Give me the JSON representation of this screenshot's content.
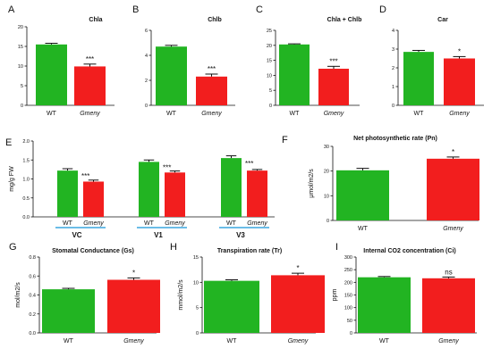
{
  "chart_data": [
    {
      "panel": "A",
      "type": "bar",
      "title": "Chla",
      "ylabel": "",
      "categories": [
        "WT",
        "Gmeny"
      ],
      "values": [
        15.5,
        9.9
      ],
      "errors": [
        0.3,
        0.6
      ],
      "significance": "***",
      "ylim": [
        0,
        20
      ],
      "yticks": [
        0,
        5,
        10,
        15,
        20
      ]
    },
    {
      "panel": "B",
      "type": "bar",
      "title": "Chlb",
      "ylabel": "",
      "categories": [
        "WT",
        "Gmeny"
      ],
      "values": [
        4.7,
        2.3
      ],
      "errors": [
        0.1,
        0.2
      ],
      "significance": "***",
      "ylim": [
        0,
        6
      ],
      "yticks": [
        0,
        2,
        4,
        6
      ]
    },
    {
      "panel": "C",
      "type": "bar",
      "title": "Chla + Chlb",
      "ylabel": "",
      "categories": [
        "WT",
        "Gmeny"
      ],
      "values": [
        20.3,
        12.2
      ],
      "errors": [
        0.2,
        0.8
      ],
      "significance": "***",
      "ylim": [
        0,
        25
      ],
      "yticks": [
        0,
        5,
        10,
        15,
        20,
        25
      ]
    },
    {
      "panel": "D",
      "type": "bar",
      "title": "Car",
      "ylabel": "",
      "categories": [
        "WT",
        "Gmeny"
      ],
      "values": [
        2.85,
        2.5
      ],
      "errors": [
        0.08,
        0.1
      ],
      "significance": "*",
      "ylim": [
        0,
        4
      ],
      "yticks": [
        0,
        1,
        2,
        3,
        4
      ]
    },
    {
      "panel": "E",
      "type": "bar",
      "title": "",
      "ylabel": "mg/g FW",
      "categories": [
        "WT",
        "Gmeny",
        "WT",
        "Gmeny",
        "WT",
        "Gmeny"
      ],
      "groups": [
        "VC",
        "V1",
        "V3"
      ],
      "values": [
        1.22,
        0.93,
        1.45,
        1.17,
        1.55,
        1.22
      ],
      "errors": [
        0.05,
        0.04,
        0.05,
        0.04,
        0.06,
        0.03
      ],
      "significance": [
        "***",
        "***",
        "***"
      ],
      "ylim": [
        0,
        2.0
      ],
      "yticks": [
        0.0,
        0.5,
        1.0,
        1.5,
        2.0
      ],
      "ytick_labels": [
        "0.0",
        "0.5",
        "1.0",
        "1.5",
        "2.0"
      ]
    },
    {
      "panel": "F",
      "type": "bar",
      "title": "Net photosynthetic rate (Pn)",
      "ylabel": "μmol/m2/s",
      "categories": [
        "WT",
        "Gmeny"
      ],
      "values": [
        20.3,
        25.0
      ],
      "errors": [
        0.8,
        0.7
      ],
      "significance": "*",
      "ylim": [
        0,
        30
      ],
      "yticks": [
        0,
        10,
        20,
        30
      ]
    },
    {
      "panel": "G",
      "type": "bar",
      "title": "Stomatal Conductance (Gs)",
      "ylabel": "mol/m2/s",
      "categories": [
        "WT",
        "Gmeny"
      ],
      "values": [
        0.46,
        0.56
      ],
      "errors": [
        0.01,
        0.02
      ],
      "significance": "*",
      "ylim": [
        0,
        0.8
      ],
      "yticks": [
        0.0,
        0.2,
        0.4,
        0.6,
        0.8
      ],
      "ytick_labels": [
        "0.0",
        "0.2",
        "0.4",
        "0.6",
        "0.8"
      ]
    },
    {
      "panel": "H",
      "type": "bar",
      "title": "Transpiration rate (Tr)",
      "ylabel": "mmol/m2/s",
      "categories": [
        "WT",
        "Gmeny"
      ],
      "values": [
        10.3,
        11.4
      ],
      "errors": [
        0.2,
        0.4
      ],
      "significance": "*",
      "ylim": [
        0,
        15
      ],
      "yticks": [
        0,
        5,
        10,
        15
      ]
    },
    {
      "panel": "I",
      "type": "bar",
      "title": "Internal CO2 concentration (Ci)",
      "ylabel": "ppm",
      "categories": [
        "WT",
        "Gmeny"
      ],
      "values": [
        220,
        216
      ],
      "errors": [
        3,
        5
      ],
      "significance": "ns",
      "ylim": [
        0,
        300
      ],
      "yticks": [
        0,
        50,
        100,
        150,
        200,
        250,
        300
      ]
    }
  ],
  "colors": {
    "wt": "#22b422",
    "mutant": "#f21e1e",
    "axis": "#111111",
    "group_underline": "#3aa6df"
  }
}
